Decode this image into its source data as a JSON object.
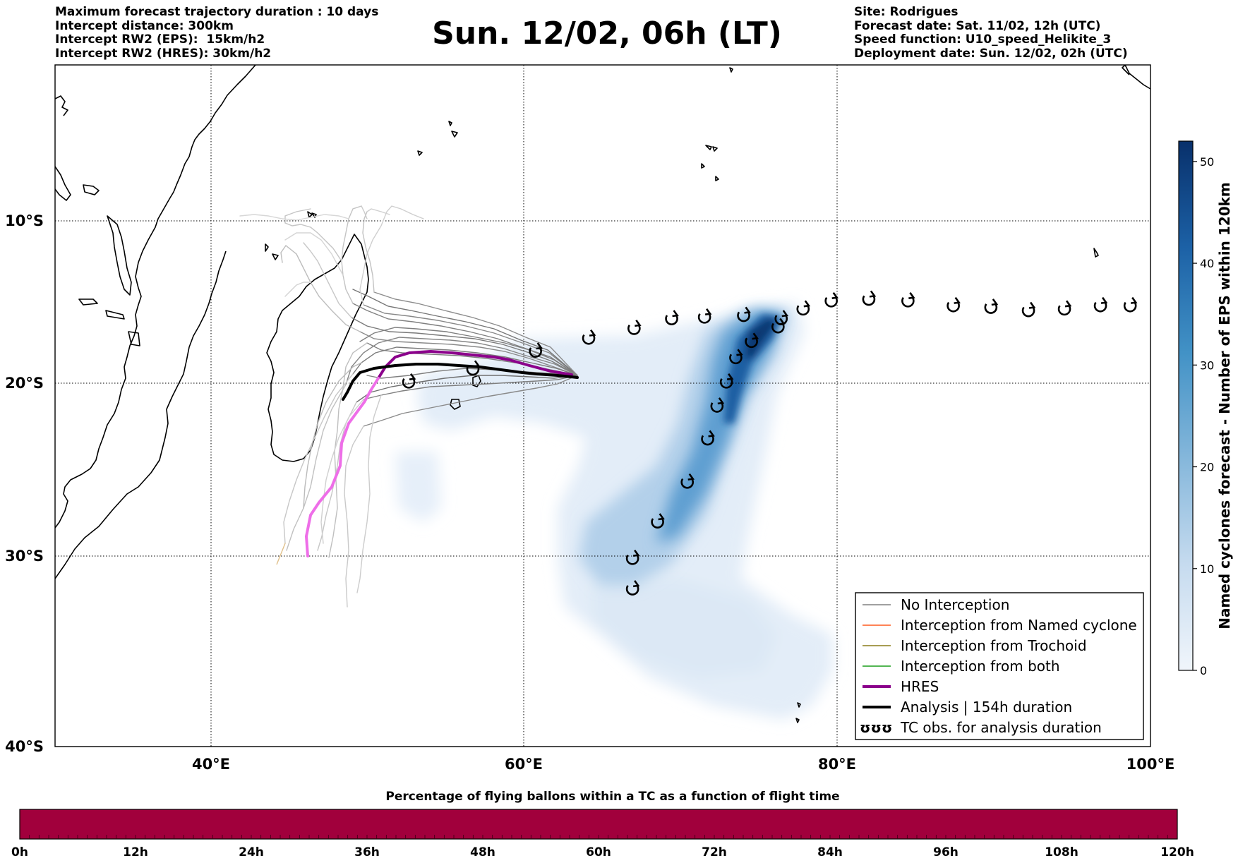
{
  "header_left": [
    "Maximum forecast trajectory duration : 10 days",
    "Intercept distance: 300km",
    "Intercept RW2 (EPS):  15km/h2",
    "Intercept RW2 (HRES): 30km/h2"
  ],
  "header_right": [
    "Site: Rodrigues",
    "Forecast date: Sat. 11/02, 12h (UTC)",
    "Speed function: U10_speed_Helikite_3",
    "Deployment date: Sun. 12/02, 02h (UTC)"
  ],
  "title": "Sun. 12/02, 06h (LT)",
  "map": {
    "lon_range": [
      30,
      100
    ],
    "lat_range": [
      -40,
      0
    ],
    "lon_ticks": [
      {
        "value": 40,
        "label": "40°E"
      },
      {
        "value": 60,
        "label": "60°E"
      },
      {
        "value": 80,
        "label": "80°E"
      },
      {
        "value": 100,
        "label": "100°E"
      }
    ],
    "lat_ticks": [
      {
        "value": -10,
        "label": "10°S"
      },
      {
        "value": -20,
        "label": "20°S"
      },
      {
        "value": -30,
        "label": "30°S"
      },
      {
        "value": -40,
        "label": "40°S"
      }
    ],
    "grid": true
  },
  "legend": {
    "placement": "lower-right",
    "items": [
      {
        "label": "No Interception",
        "color": "#808080",
        "style": "thin"
      },
      {
        "label": "Interception from Named cyclone",
        "color": "#ff5a1f",
        "style": "thin"
      },
      {
        "label": "Interception from Trochoid",
        "color": "#8b7d1a",
        "style": "thin"
      },
      {
        "label": "Interception from both",
        "color": "#1a9e1a",
        "style": "thin"
      },
      {
        "label": "HRES",
        "color": "#8b008b",
        "style": "thick"
      },
      {
        "label": "Analysis | 154h duration",
        "color": "#000000",
        "style": "thick"
      },
      {
        "label": "TC obs. for analysis duration",
        "color": "#000000",
        "style": "symbol",
        "symbol_text": "ʊʊʊ"
      }
    ]
  },
  "colorbar_right": {
    "title": "Named cyclones forecast - Number of EPS within 120km",
    "range": [
      0,
      52
    ],
    "ticks": [
      "0",
      "10",
      "20",
      "30",
      "40",
      "50"
    ],
    "tick_values": [
      0,
      10,
      20,
      30,
      40,
      50
    ],
    "color_low": "#f0f5fb",
    "color_high": "#08306b"
  },
  "colorbar_bottom": {
    "title": "Percentage of flying ballons within a TC as a function of flight time",
    "ticks": [
      "0h",
      "12h",
      "24h",
      "36h",
      "48h",
      "60h",
      "72h",
      "84h",
      "96h",
      "108h",
      "120h"
    ],
    "fill_color": "#a1003c"
  },
  "chart_data": {
    "type": "map",
    "tc_observations_lonlat": [
      [
        77.8,
        -15.4
      ],
      [
        79.6,
        -14.9
      ],
      [
        82.0,
        -14.8
      ],
      [
        84.5,
        -14.9
      ],
      [
        87.4,
        -15.2
      ],
      [
        89.8,
        -15.3
      ],
      [
        92.2,
        -15.5
      ],
      [
        94.5,
        -15.4
      ],
      [
        96.8,
        -15.2
      ],
      [
        98.7,
        -15.2
      ],
      [
        76.4,
        -16.0
      ],
      [
        76.2,
        -16.5
      ],
      [
        74.5,
        -17.4
      ],
      [
        73.5,
        -18.4
      ],
      [
        72.9,
        -19.9
      ],
      [
        72.3,
        -21.3
      ],
      [
        71.7,
        -23.2
      ],
      [
        70.4,
        -25.7
      ],
      [
        68.5,
        -28.0
      ],
      [
        66.9,
        -30.1
      ],
      [
        66.9,
        -31.7
      ],
      [
        74.0,
        -15.8
      ],
      [
        71.5,
        -15.9
      ],
      [
        69.4,
        -16.0
      ],
      [
        67.0,
        -16.6
      ],
      [
        64.1,
        -17.2
      ],
      [
        60.7,
        -18.0
      ],
      [
        56.7,
        -19.1
      ],
      [
        52.6,
        -19.9
      ]
    ],
    "analysis_track_lonlat": [
      [
        63.4,
        -19.7
      ],
      [
        62.0,
        -19.6
      ],
      [
        60.5,
        -19.3
      ],
      [
        58.5,
        -19.0
      ],
      [
        56.5,
        -18.7
      ],
      [
        54.5,
        -18.5
      ],
      [
        52.5,
        -18.6
      ],
      [
        50.5,
        -19.0
      ],
      [
        49.3,
        -19.6
      ],
      [
        48.6,
        -20.7
      ]
    ],
    "hres_track_lonlat": [
      [
        63.1,
        -19.8
      ],
      [
        61.0,
        -19.3
      ],
      [
        59.0,
        -18.6
      ],
      [
        57.0,
        -18.2
      ],
      [
        55.0,
        -17.9
      ],
      [
        53.0,
        -17.9
      ],
      [
        51.3,
        -18.5
      ],
      [
        50.0,
        -19.7
      ],
      [
        49.0,
        -21.2
      ],
      [
        48.4,
        -23.0
      ],
      [
        47.9,
        -24.7
      ],
      [
        46.8,
        -26.0
      ],
      [
        46.1,
        -27.1
      ],
      [
        46.2,
        -27.8
      ]
    ],
    "bottom_bar_percentage_all_times": 100
  }
}
